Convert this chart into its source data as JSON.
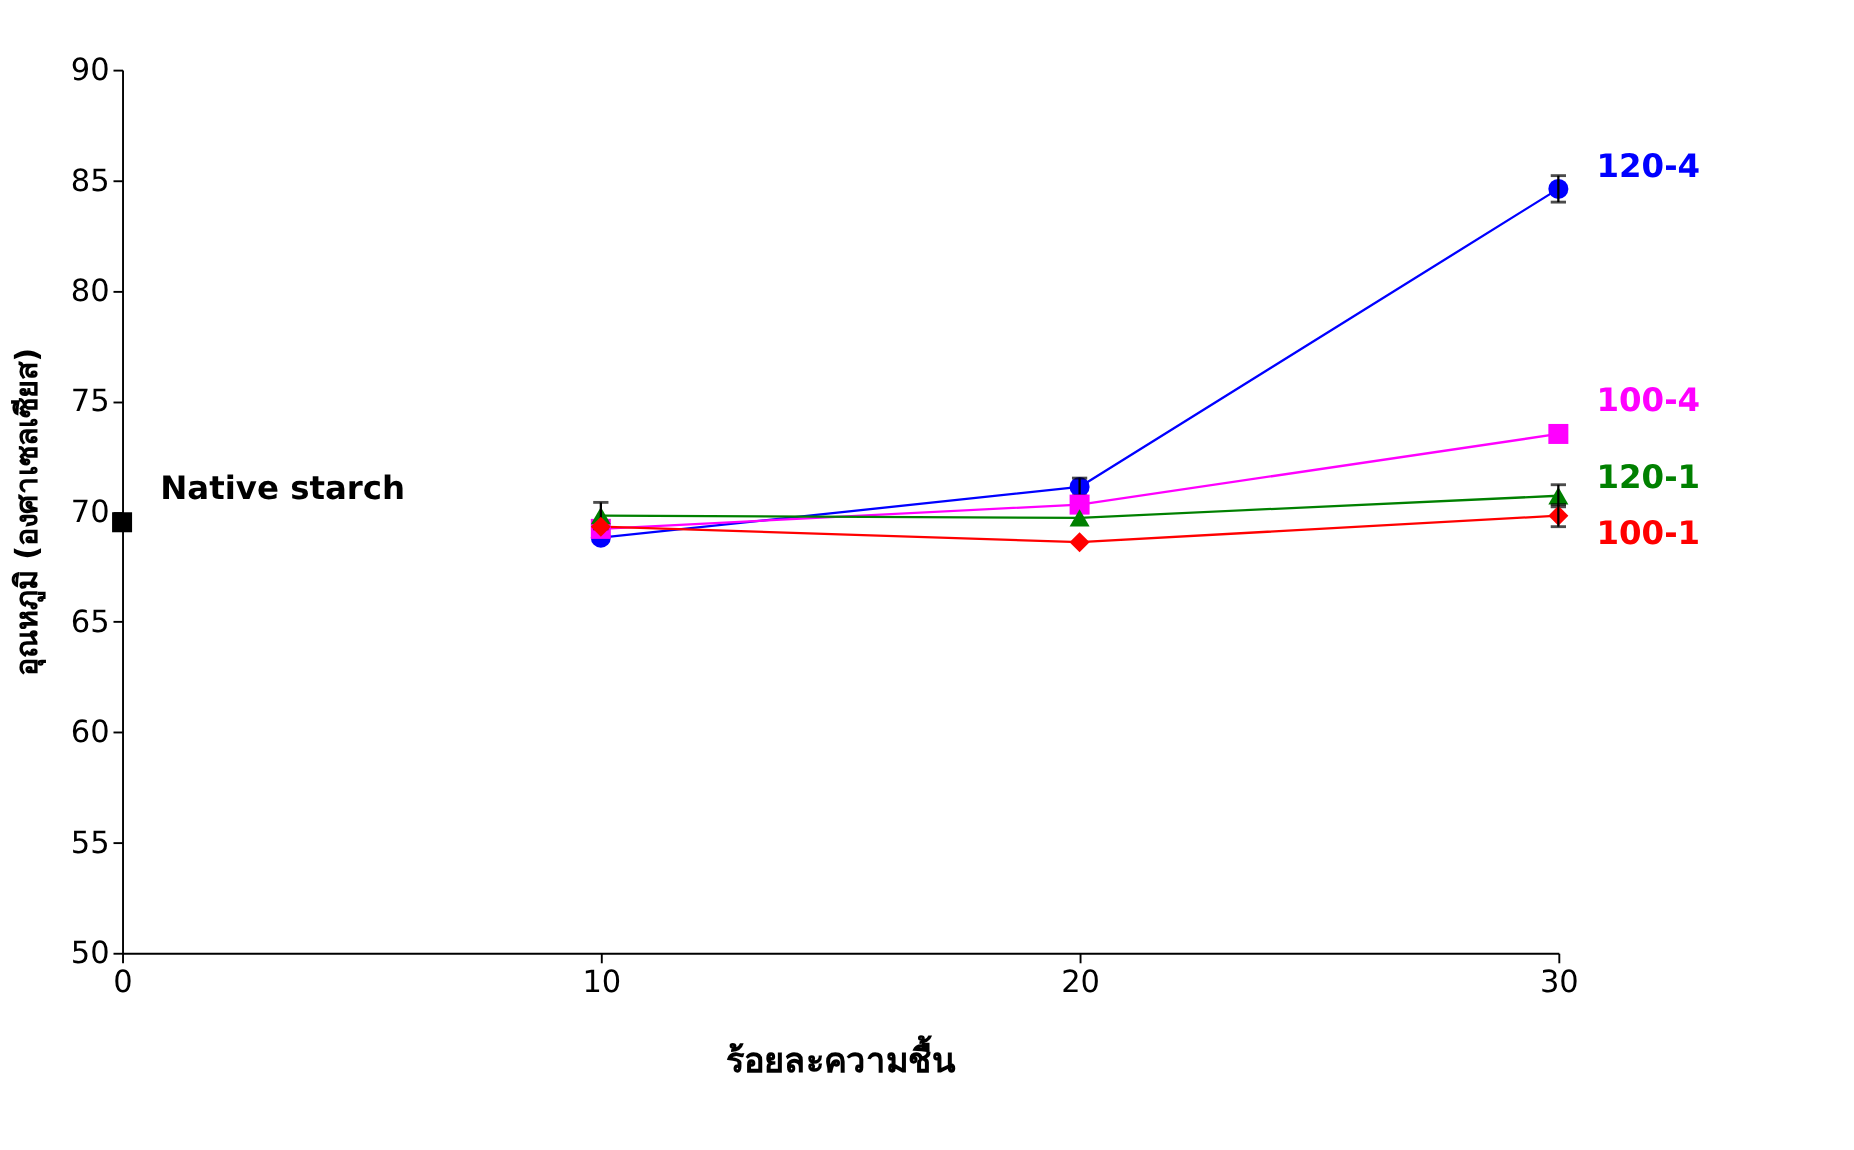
{
  "chart_data": {
    "type": "line",
    "xlabel": "ร้อยละความชื้น",
    "ylabel": "อุณหภูมิ (องศาเซลเซียส)",
    "xlim": [
      0,
      30
    ],
    "xticks": [
      0,
      10,
      20,
      30
    ],
    "ylim": [
      50,
      90
    ],
    "yticks": [
      50,
      55,
      60,
      65,
      70,
      75,
      80,
      85,
      90
    ],
    "grid": false,
    "legend": "right",
    "line_style": "solid",
    "series": [
      {
        "name": "Native starch",
        "marker": "square",
        "color": "#000000",
        "x": [
          0
        ],
        "values": [
          69.5
        ]
      },
      {
        "name": "120-4",
        "marker": "circle",
        "color": "#0000ff",
        "x": [
          10,
          20,
          30
        ],
        "values": [
          68.8,
          71.1,
          84.6
        ],
        "errors": [
          null,
          0.4,
          0.6
        ]
      },
      {
        "name": "100-4",
        "marker": "square",
        "color": "#ff00ff",
        "x": [
          10,
          20,
          30
        ],
        "values": [
          69.2,
          70.3,
          73.5
        ]
      },
      {
        "name": "120-1",
        "marker": "triangle",
        "color": "#008000",
        "x": [
          10,
          20,
          30
        ],
        "values": [
          69.8,
          69.7,
          70.7
        ],
        "errors": [
          0.6,
          null,
          0.5
        ]
      },
      {
        "name": "100-1",
        "marker": "diamond",
        "color": "#ff0000",
        "x": [
          10,
          20,
          30
        ],
        "values": [
          69.3,
          68.6,
          69.8
        ],
        "errors": [
          null,
          null,
          0.5
        ]
      }
    ]
  }
}
